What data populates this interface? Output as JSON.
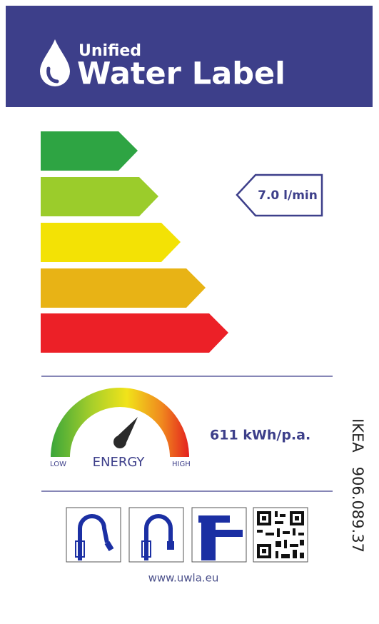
{
  "header": {
    "line1": "Unified",
    "line2": "Water Label"
  },
  "flow_rate": "7.0 l/min",
  "energy": {
    "low_label": "LOW",
    "title": "ENERGY",
    "high_label": "HIGH",
    "consumption": "611 kWh/p.a."
  },
  "product_code": "IKEA   906.089.37",
  "website": "www.uwla.eu"
}
